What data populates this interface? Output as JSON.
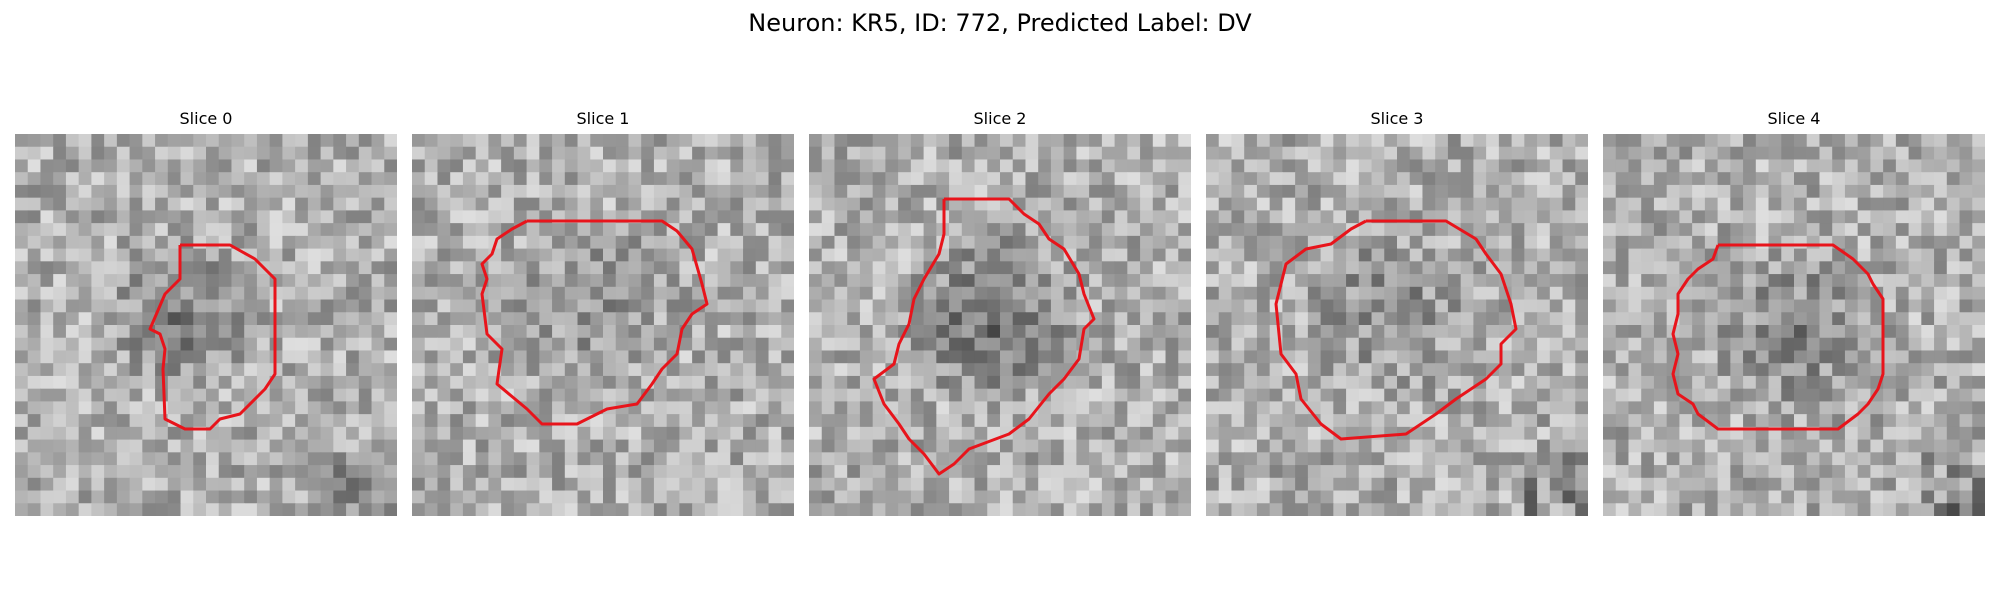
{
  "figure": {
    "title": "Neuron: KR5, ID: 772, Predicted Label: DV"
  },
  "colors": {
    "contour": "#e8141b",
    "background": "#ffffff"
  },
  "panels": [
    {
      "title": "Slice 0"
    },
    {
      "title": "Slice 1"
    },
    {
      "title": "Slice 2"
    },
    {
      "title": "Slice 3"
    },
    {
      "title": "Slice 4"
    }
  ]
}
